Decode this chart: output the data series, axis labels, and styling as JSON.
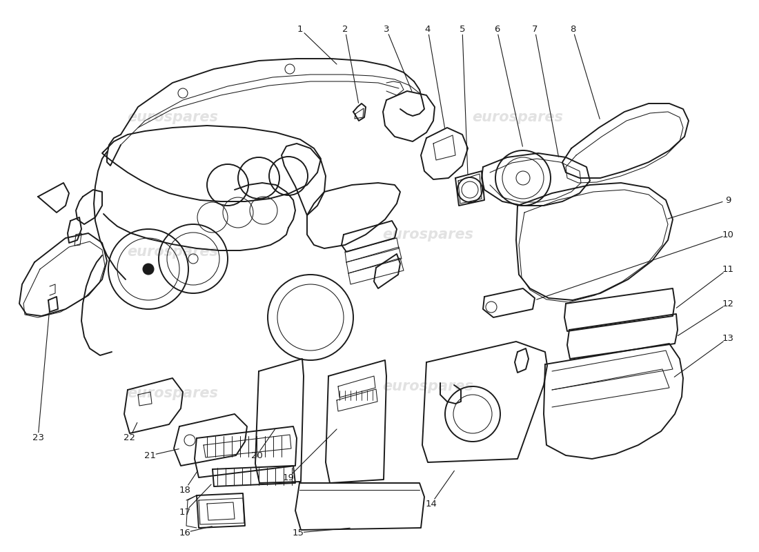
{
  "background_color": "#ffffff",
  "line_color": "#1a1a1a",
  "watermark_color": "#c0c0c0",
  "watermark_text": "eurospares",
  "figsize": [
    11.0,
    8.0
  ],
  "dpi": 100,
  "lw_main": 1.4,
  "lw_thin": 0.75,
  "label_fontsize": 9.5
}
